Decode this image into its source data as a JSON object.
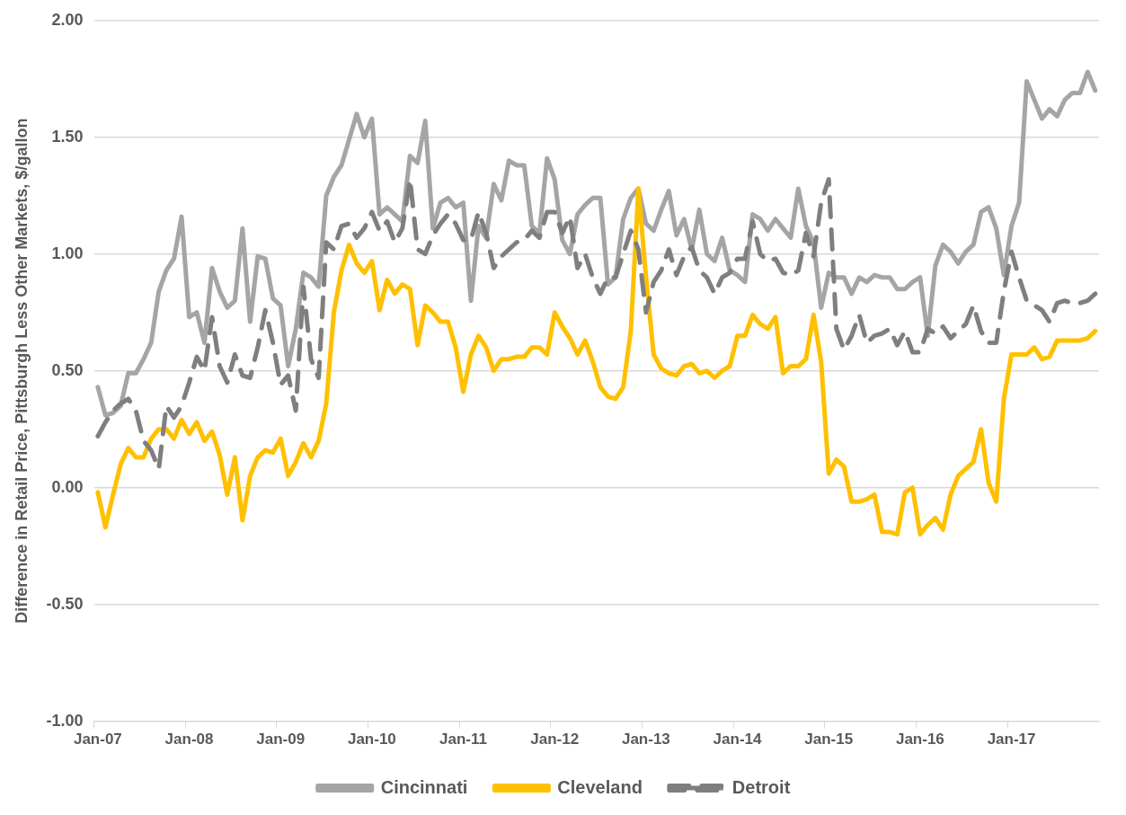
{
  "chart_data": {
    "type": "line",
    "ylabel": "Difference in Retail Price, Pittsburgh Less Other Markets, $/gallon",
    "categories": [
      "Jan-07",
      null,
      null,
      null,
      null,
      null,
      null,
      null,
      null,
      null,
      null,
      null,
      "Jan-08",
      null,
      null,
      null,
      null,
      null,
      null,
      null,
      null,
      null,
      null,
      null,
      "Jan-09",
      null,
      null,
      null,
      null,
      null,
      null,
      null,
      null,
      null,
      null,
      null,
      "Jan-10",
      null,
      null,
      null,
      null,
      null,
      null,
      null,
      null,
      null,
      null,
      null,
      "Jan-11",
      null,
      null,
      null,
      null,
      null,
      null,
      null,
      null,
      null,
      null,
      null,
      "Jan-12",
      null,
      null,
      null,
      null,
      null,
      null,
      null,
      null,
      null,
      null,
      null,
      "Jan-13",
      null,
      null,
      null,
      null,
      null,
      null,
      null,
      null,
      null,
      null,
      null,
      "Jan-14",
      null,
      null,
      null,
      null,
      null,
      null,
      null,
      null,
      null,
      null,
      null,
      "Jan-15",
      null,
      null,
      null,
      null,
      null,
      null,
      null,
      null,
      null,
      null,
      null,
      "Jan-16",
      null,
      null,
      null,
      null,
      null,
      null,
      null,
      null,
      null,
      null,
      null,
      "Jan-17",
      null,
      null,
      null,
      null,
      null,
      null,
      null,
      null,
      null,
      null,
      null
    ],
    "series": [
      {
        "name": "Cincinnati",
        "color": "#a5a5a5",
        "line_style": "solid",
        "values": [
          0.43,
          0.31,
          0.32,
          0.35,
          0.49,
          0.49,
          0.55,
          0.62,
          0.84,
          0.93,
          0.98,
          1.16,
          0.73,
          0.75,
          0.62,
          0.94,
          0.84,
          0.77,
          0.8,
          1.11,
          0.71,
          0.99,
          0.98,
          0.81,
          0.78,
          0.52,
          0.68,
          0.92,
          0.9,
          0.86,
          1.25,
          1.33,
          1.38,
          1.49,
          1.6,
          1.5,
          1.58,
          1.17,
          1.2,
          1.17,
          1.14,
          1.42,
          1.39,
          1.57,
          1.11,
          1.22,
          1.24,
          1.2,
          1.22,
          0.8,
          1.12,
          1.07,
          1.3,
          1.23,
          1.4,
          1.38,
          1.38,
          1.12,
          1.09,
          1.41,
          1.32,
          1.06,
          1.0,
          1.17,
          1.21,
          1.24,
          1.24,
          0.87,
          0.9,
          1.15,
          1.24,
          1.28,
          1.13,
          1.1,
          1.19,
          1.27,
          1.08,
          1.15,
          1.02,
          1.19,
          1.0,
          0.97,
          1.07,
          0.93,
          0.91,
          0.88,
          1.17,
          1.15,
          1.1,
          1.15,
          1.11,
          1.07,
          1.28,
          1.12,
          1.05,
          0.77,
          0.92,
          0.9,
          0.9,
          0.83,
          0.9,
          0.88,
          0.91,
          0.9,
          0.9,
          0.85,
          0.85,
          0.88,
          0.9,
          0.65,
          0.95,
          1.04,
          1.01,
          0.96,
          1.01,
          1.04,
          1.18,
          1.2,
          1.11,
          0.91,
          1.12,
          1.22,
          1.74,
          1.66,
          1.58,
          1.62,
          1.59,
          1.66,
          1.69,
          1.69,
          1.78,
          1.7
        ]
      },
      {
        "name": "Cleveland",
        "color": "#ffc000",
        "line_style": "solid",
        "values": [
          -0.02,
          -0.17,
          -0.03,
          0.1,
          0.17,
          0.13,
          0.13,
          0.21,
          0.25,
          0.25,
          0.21,
          0.29,
          0.23,
          0.28,
          0.2,
          0.24,
          0.14,
          -0.03,
          0.13,
          -0.14,
          0.05,
          0.13,
          0.16,
          0.15,
          0.21,
          0.05,
          0.11,
          0.19,
          0.13,
          0.2,
          0.36,
          0.75,
          0.93,
          1.04,
          0.96,
          0.92,
          0.97,
          0.76,
          0.89,
          0.83,
          0.87,
          0.85,
          0.61,
          0.78,
          0.75,
          0.71,
          0.71,
          0.6,
          0.41,
          0.57,
          0.65,
          0.6,
          0.5,
          0.55,
          0.55,
          0.56,
          0.56,
          0.6,
          0.6,
          0.57,
          0.75,
          0.69,
          0.64,
          0.57,
          0.63,
          0.54,
          0.43,
          0.39,
          0.38,
          0.43,
          0.67,
          1.28,
          0.9,
          0.57,
          0.51,
          0.49,
          0.48,
          0.52,
          0.53,
          0.49,
          0.5,
          0.47,
          0.5,
          0.52,
          0.65,
          0.65,
          0.74,
          0.7,
          0.68,
          0.73,
          0.49,
          0.52,
          0.52,
          0.55,
          0.74,
          0.54,
          0.06,
          0.12,
          0.09,
          -0.06,
          -0.06,
          -0.05,
          -0.03,
          -0.19,
          -0.19,
          -0.2,
          -0.02,
          0.0,
          -0.2,
          -0.16,
          -0.13,
          -0.18,
          -0.03,
          0.05,
          0.08,
          0.11,
          0.25,
          0.02,
          -0.06,
          0.38,
          0.57,
          0.57,
          0.57,
          0.6,
          0.55,
          0.56,
          0.63,
          0.63,
          0.63,
          0.63,
          0.64,
          0.67
        ]
      },
      {
        "name": "Detroit",
        "color": "#7f7f7f",
        "line_style": "dashed",
        "values": [
          0.22,
          0.28,
          0.33,
          0.36,
          0.38,
          0.33,
          0.2,
          0.16,
          0.08,
          0.35,
          0.3,
          0.35,
          0.45,
          0.56,
          0.5,
          0.73,
          0.52,
          0.45,
          0.57,
          0.48,
          0.47,
          0.6,
          0.76,
          0.62,
          0.44,
          0.48,
          0.33,
          0.86,
          0.55,
          0.47,
          1.05,
          1.02,
          1.12,
          1.13,
          1.07,
          1.11,
          1.18,
          1.1,
          1.14,
          1.05,
          1.11,
          1.32,
          1.02,
          1.0,
          1.08,
          1.13,
          1.17,
          1.13,
          1.06,
          1.06,
          1.18,
          1.09,
          0.94,
          0.99,
          1.02,
          1.05,
          1.06,
          1.1,
          1.07,
          1.18,
          1.18,
          1.09,
          1.16,
          0.94,
          1.0,
          0.9,
          0.83,
          0.9,
          0.9,
          1.0,
          1.1,
          1.02,
          0.75,
          0.88,
          0.93,
          1.02,
          0.91,
          0.99,
          1.03,
          0.93,
          0.9,
          0.83,
          0.9,
          0.92,
          0.98,
          0.98,
          1.14,
          1.0,
          0.97,
          0.98,
          0.92,
          0.91,
          0.93,
          1.09,
          0.99,
          1.22,
          1.32,
          0.68,
          0.59,
          0.65,
          0.74,
          0.62,
          0.65,
          0.66,
          0.68,
          0.61,
          0.67,
          0.58,
          0.58,
          0.68,
          0.66,
          0.69,
          0.64,
          0.67,
          0.7,
          0.78,
          0.67,
          0.62,
          0.62,
          0.84,
          1.01,
          0.9,
          0.8,
          0.78,
          0.76,
          0.71,
          0.79,
          0.8,
          0.79,
          0.79,
          0.8,
          0.83
        ]
      }
    ],
    "ylim": [
      -1,
      2
    ],
    "yticks": [
      {
        "value": -1,
        "label": "-1.00"
      },
      {
        "value": -0.5,
        "label": "-0.50"
      },
      {
        "value": 0,
        "label": "0.00"
      },
      {
        "value": 0.5,
        "label": "0.50"
      },
      {
        "value": 1,
        "label": "1.00"
      },
      {
        "value": 1.5,
        "label": "1.50"
      },
      {
        "value": 2,
        "label": "2.00"
      }
    ],
    "grid": "y",
    "legend": "bottom",
    "marker": "none"
  }
}
